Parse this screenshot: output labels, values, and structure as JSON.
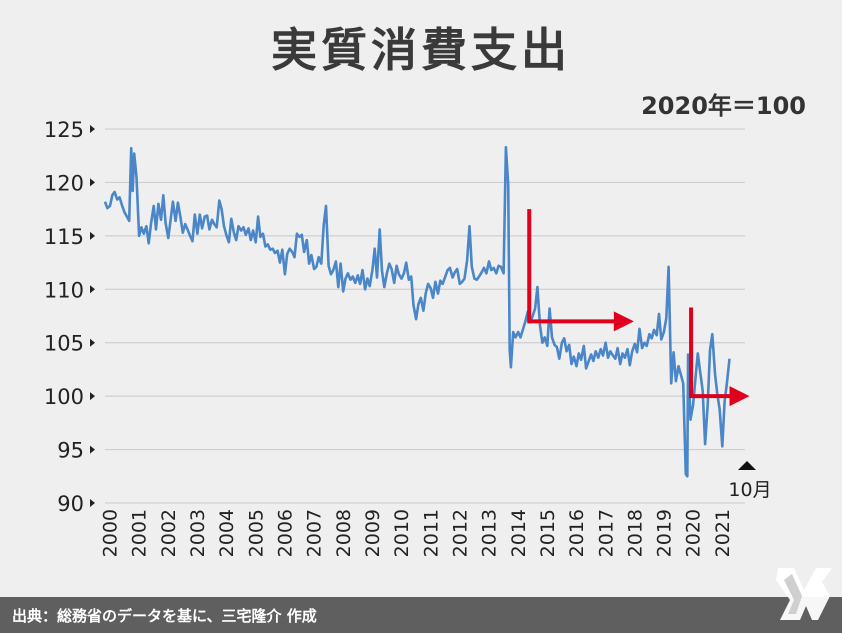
{
  "title": "実質消費支出",
  "unit": "2020年＝100",
  "source": "出典：総務省のデータを基に、三宅隆介 作成",
  "annotation": "10月",
  "colors": {
    "line": "#4a86c8",
    "arrow": "#e0001b",
    "grid": "#c8c8c8",
    "footer": "#5f5f5f"
  },
  "chart_data": {
    "type": "line",
    "title": "実質消費支出",
    "xlabel": "",
    "ylabel": "",
    "unit": "2020年＝100",
    "xlim": [
      2000,
      2021.95
    ],
    "ylim": [
      90,
      125
    ],
    "yticks": [
      90,
      95,
      100,
      105,
      110,
      115,
      120,
      125
    ],
    "xticks": [
      "2000",
      "2001",
      "2002",
      "2003",
      "2004",
      "2005",
      "2006",
      "2007",
      "2008",
      "2009",
      "2010",
      "2011",
      "2012",
      "2013",
      "2014",
      "2015",
      "2016",
      "2017",
      "2018",
      "2019",
      "2020",
      "2021"
    ],
    "grid": "horizontal",
    "series": [
      {
        "values": [
          [
            2000.0,
            118.2
          ],
          [
            2000.08,
            117.6
          ],
          [
            2000.17,
            117.8
          ],
          [
            2000.25,
            118.8
          ],
          [
            2000.33,
            119.1
          ],
          [
            2000.42,
            118.4
          ],
          [
            2000.5,
            118.6
          ],
          [
            2000.58,
            117.9
          ],
          [
            2000.67,
            117.2
          ],
          [
            2000.75,
            116.8
          ],
          [
            2000.83,
            116.4
          ],
          [
            2000.9,
            123.2
          ],
          [
            2000.95,
            119.2
          ],
          [
            2001.0,
            122.7
          ],
          [
            2001.08,
            120.5
          ],
          [
            2001.17,
            115.0
          ],
          [
            2001.25,
            115.8
          ],
          [
            2001.33,
            115.2
          ],
          [
            2001.42,
            115.9
          ],
          [
            2001.5,
            114.3
          ],
          [
            2001.58,
            116.2
          ],
          [
            2001.67,
            117.8
          ],
          [
            2001.75,
            115.6
          ],
          [
            2001.83,
            118.0
          ],
          [
            2001.92,
            116.5
          ],
          [
            2002.0,
            118.8
          ],
          [
            2002.08,
            116.2
          ],
          [
            2002.17,
            114.8
          ],
          [
            2002.25,
            116.5
          ],
          [
            2002.33,
            118.2
          ],
          [
            2002.42,
            116.4
          ],
          [
            2002.5,
            118.1
          ],
          [
            2002.58,
            116.9
          ],
          [
            2002.67,
            115.3
          ],
          [
            2002.75,
            116.1
          ],
          [
            2002.83,
            115.6
          ],
          [
            2002.92,
            115.0
          ],
          [
            2003.0,
            114.5
          ],
          [
            2003.08,
            117.0
          ],
          [
            2003.17,
            115.2
          ],
          [
            2003.25,
            117.0
          ],
          [
            2003.33,
            115.7
          ],
          [
            2003.42,
            116.8
          ],
          [
            2003.5,
            116.9
          ],
          [
            2003.58,
            115.6
          ],
          [
            2003.67,
            116.5
          ],
          [
            2003.75,
            116.1
          ],
          [
            2003.83,
            115.8
          ],
          [
            2003.92,
            118.3
          ],
          [
            2004.0,
            117.5
          ],
          [
            2004.08,
            115.9
          ],
          [
            2004.17,
            115.0
          ],
          [
            2004.25,
            114.4
          ],
          [
            2004.33,
            116.6
          ],
          [
            2004.42,
            115.3
          ],
          [
            2004.5,
            114.6
          ],
          [
            2004.58,
            115.9
          ],
          [
            2004.67,
            115.5
          ],
          [
            2004.75,
            115.8
          ],
          [
            2004.83,
            115.1
          ],
          [
            2004.92,
            115.7
          ],
          [
            2005.0,
            114.6
          ],
          [
            2005.08,
            115.5
          ],
          [
            2005.17,
            114.4
          ],
          [
            2005.25,
            116.8
          ],
          [
            2005.33,
            114.9
          ],
          [
            2005.42,
            115.2
          ],
          [
            2005.5,
            114.0
          ],
          [
            2005.58,
            114.2
          ],
          [
            2005.67,
            113.7
          ],
          [
            2005.75,
            113.8
          ],
          [
            2005.83,
            113.4
          ],
          [
            2005.92,
            113.6
          ],
          [
            2006.0,
            112.5
          ],
          [
            2006.08,
            113.7
          ],
          [
            2006.17,
            111.4
          ],
          [
            2006.25,
            113.3
          ],
          [
            2006.33,
            113.8
          ],
          [
            2006.42,
            113.5
          ],
          [
            2006.5,
            113.0
          ],
          [
            2006.58,
            115.2
          ],
          [
            2006.67,
            114.9
          ],
          [
            2006.75,
            115.1
          ],
          [
            2006.83,
            113.5
          ],
          [
            2006.92,
            114.6
          ],
          [
            2007.0,
            112.4
          ],
          [
            2007.08,
            113.2
          ],
          [
            2007.17,
            111.9
          ],
          [
            2007.25,
            112.1
          ],
          [
            2007.33,
            113.0
          ],
          [
            2007.42,
            112.4
          ],
          [
            2007.5,
            116.0
          ],
          [
            2007.58,
            117.8
          ],
          [
            2007.67,
            112.2
          ],
          [
            2007.75,
            111.4
          ],
          [
            2007.83,
            111.8
          ],
          [
            2007.92,
            112.6
          ],
          [
            2008.0,
            110.2
          ],
          [
            2008.08,
            112.4
          ],
          [
            2008.17,
            109.8
          ],
          [
            2008.25,
            111.0
          ],
          [
            2008.33,
            111.5
          ],
          [
            2008.42,
            110.9
          ],
          [
            2008.5,
            111.2
          ],
          [
            2008.58,
            110.6
          ],
          [
            2008.67,
            111.3
          ],
          [
            2008.75,
            110.5
          ],
          [
            2008.83,
            111.8
          ],
          [
            2008.92,
            110.0
          ],
          [
            2009.0,
            111.0
          ],
          [
            2009.08,
            110.3
          ],
          [
            2009.17,
            111.8
          ],
          [
            2009.25,
            113.8
          ],
          [
            2009.33,
            111.1
          ],
          [
            2009.42,
            115.6
          ],
          [
            2009.5,
            111.7
          ],
          [
            2009.58,
            110.2
          ],
          [
            2009.67,
            111.5
          ],
          [
            2009.75,
            112.4
          ],
          [
            2009.83,
            111.9
          ],
          [
            2009.92,
            110.6
          ],
          [
            2010.0,
            112.2
          ],
          [
            2010.08,
            111.4
          ],
          [
            2010.17,
            111.0
          ],
          [
            2010.25,
            111.5
          ],
          [
            2010.33,
            112.5
          ],
          [
            2010.42,
            110.9
          ],
          [
            2010.5,
            111.2
          ],
          [
            2010.58,
            108.5
          ],
          [
            2010.67,
            107.2
          ],
          [
            2010.75,
            108.6
          ],
          [
            2010.83,
            109.2
          ],
          [
            2010.92,
            108.0
          ],
          [
            2011.0,
            109.6
          ],
          [
            2011.08,
            110.5
          ],
          [
            2011.17,
            110.1
          ],
          [
            2011.25,
            109.2
          ],
          [
            2011.33,
            110.7
          ],
          [
            2011.42,
            109.6
          ],
          [
            2011.5,
            110.8
          ],
          [
            2011.58,
            110.5
          ],
          [
            2011.67,
            111.2
          ],
          [
            2011.75,
            111.8
          ],
          [
            2011.83,
            112.0
          ],
          [
            2011.92,
            111.1
          ],
          [
            2012.0,
            111.6
          ],
          [
            2012.08,
            111.9
          ],
          [
            2012.17,
            110.5
          ],
          [
            2012.25,
            110.7
          ],
          [
            2012.33,
            111.0
          ],
          [
            2012.42,
            112.7
          ],
          [
            2012.5,
            115.9
          ],
          [
            2012.58,
            112.1
          ],
          [
            2012.67,
            111.0
          ],
          [
            2012.75,
            110.9
          ],
          [
            2012.83,
            111.2
          ],
          [
            2012.92,
            111.6
          ],
          [
            2013.0,
            112.0
          ],
          [
            2013.08,
            111.5
          ],
          [
            2013.17,
            112.6
          ],
          [
            2013.25,
            111.8
          ],
          [
            2013.33,
            112.0
          ],
          [
            2013.42,
            111.5
          ],
          [
            2013.5,
            112.2
          ],
          [
            2013.58,
            112.1
          ],
          [
            2013.67,
            111.5
          ],
          [
            2013.75,
            123.3
          ],
          [
            2013.83,
            119.8
          ],
          [
            2013.88,
            104.3
          ],
          [
            2013.92,
            102.7
          ],
          [
            2014.0,
            106.0
          ],
          [
            2014.08,
            105.5
          ],
          [
            2014.17,
            106.0
          ],
          [
            2014.25,
            105.5
          ],
          [
            2014.33,
            106.2
          ],
          [
            2014.42,
            107.0
          ],
          [
            2014.5,
            107.9
          ],
          [
            2014.58,
            106.9
          ],
          [
            2014.67,
            107.5
          ],
          [
            2014.75,
            108.2
          ],
          [
            2014.83,
            110.2
          ],
          [
            2014.92,
            106.6
          ],
          [
            2015.0,
            105.0
          ],
          [
            2015.08,
            105.5
          ],
          [
            2015.17,
            104.7
          ],
          [
            2015.25,
            108.2
          ],
          [
            2015.33,
            105.5
          ],
          [
            2015.42,
            104.8
          ],
          [
            2015.5,
            104.6
          ],
          [
            2015.58,
            103.5
          ],
          [
            2015.67,
            105.0
          ],
          [
            2015.75,
            105.4
          ],
          [
            2015.83,
            104.2
          ],
          [
            2015.92,
            104.8
          ],
          [
            2016.0,
            103.0
          ],
          [
            2016.08,
            103.7
          ],
          [
            2016.17,
            102.8
          ],
          [
            2016.25,
            104.0
          ],
          [
            2016.33,
            103.4
          ],
          [
            2016.42,
            104.7
          ],
          [
            2016.5,
            102.6
          ],
          [
            2016.58,
            103.2
          ],
          [
            2016.67,
            103.9
          ],
          [
            2016.75,
            103.3
          ],
          [
            2016.83,
            104.2
          ],
          [
            2016.92,
            103.6
          ],
          [
            2017.0,
            104.4
          ],
          [
            2017.08,
            103.8
          ],
          [
            2017.17,
            105.0
          ],
          [
            2017.25,
            103.6
          ],
          [
            2017.33,
            104.2
          ],
          [
            2017.42,
            103.8
          ],
          [
            2017.5,
            103.5
          ],
          [
            2017.58,
            104.5
          ],
          [
            2017.67,
            103.0
          ],
          [
            2017.75,
            104.0
          ],
          [
            2017.83,
            103.6
          ],
          [
            2017.92,
            104.4
          ],
          [
            2018.0,
            102.9
          ],
          [
            2018.08,
            104.2
          ],
          [
            2018.17,
            104.9
          ],
          [
            2018.25,
            104.1
          ],
          [
            2018.33,
            106.3
          ],
          [
            2018.42,
            104.5
          ],
          [
            2018.5,
            105.0
          ],
          [
            2018.58,
            104.7
          ],
          [
            2018.67,
            105.8
          ],
          [
            2018.75,
            105.4
          ],
          [
            2018.83,
            106.2
          ],
          [
            2018.92,
            105.7
          ],
          [
            2019.0,
            107.7
          ],
          [
            2019.08,
            105.3
          ],
          [
            2019.17,
            106.0
          ],
          [
            2019.25,
            107.3
          ],
          [
            2019.33,
            112.1
          ],
          [
            2019.42,
            101.2
          ],
          [
            2019.5,
            104.1
          ],
          [
            2019.58,
            101.4
          ],
          [
            2019.67,
            102.8
          ],
          [
            2019.75,
            102.0
          ],
          [
            2019.83,
            101.2
          ],
          [
            2019.92,
            92.7
          ],
          [
            2019.97,
            92.5
          ],
          [
            2020.0,
            103.9
          ],
          [
            2020.08,
            97.8
          ],
          [
            2020.17,
            99.2
          ],
          [
            2020.25,
            101.6
          ],
          [
            2020.33,
            104.0
          ],
          [
            2020.42,
            102.1
          ],
          [
            2020.5,
            100.5
          ],
          [
            2020.58,
            95.5
          ],
          [
            2020.67,
            99.2
          ],
          [
            2020.75,
            104.3
          ],
          [
            2020.83,
            105.8
          ],
          [
            2020.92,
            102.1
          ],
          [
            2021.0,
            100.2
          ],
          [
            2021.08,
            98.8
          ],
          [
            2021.17,
            95.3
          ],
          [
            2021.25,
            99.5
          ],
          [
            2021.33,
            101.2
          ],
          [
            2021.42,
            103.5
          ]
        ]
      }
    ]
  }
}
